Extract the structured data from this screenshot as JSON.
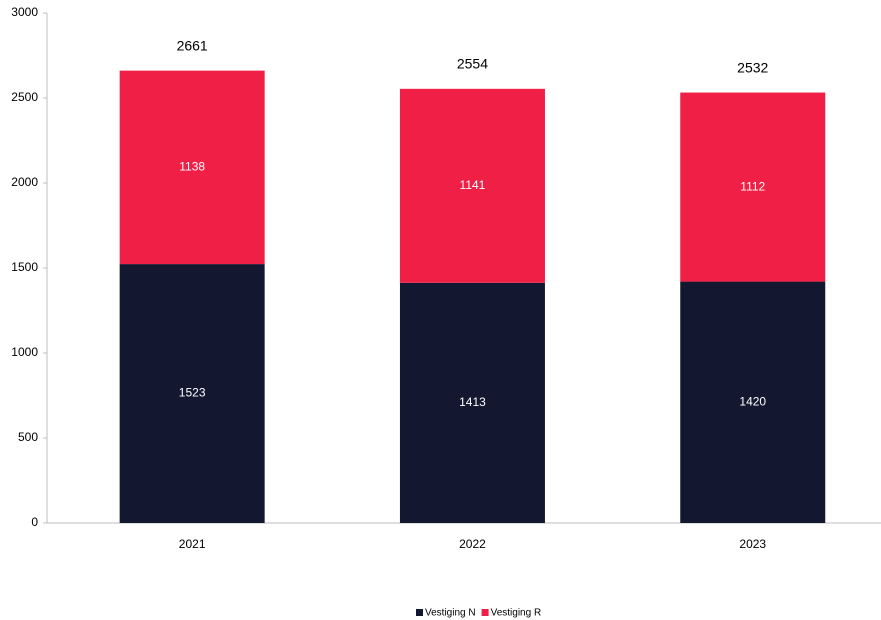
{
  "chart_data": {
    "type": "stacked_bar",
    "categories": [
      "2021",
      "2022",
      "2023"
    ],
    "series": [
      {
        "name": "Vestiging N",
        "color": "#131730",
        "values": [
          1523,
          1413,
          1420
        ]
      },
      {
        "name": "Vestiging R",
        "color": "#ef1f45",
        "values": [
          1138,
          1141,
          1112
        ]
      }
    ],
    "totals": [
      2661,
      2554,
      2532
    ],
    "ylim": [
      0,
      3000
    ],
    "yticks": [
      0,
      500,
      1000,
      1500,
      2000,
      2500,
      3000
    ],
    "grid": false,
    "legend": "bottom"
  }
}
